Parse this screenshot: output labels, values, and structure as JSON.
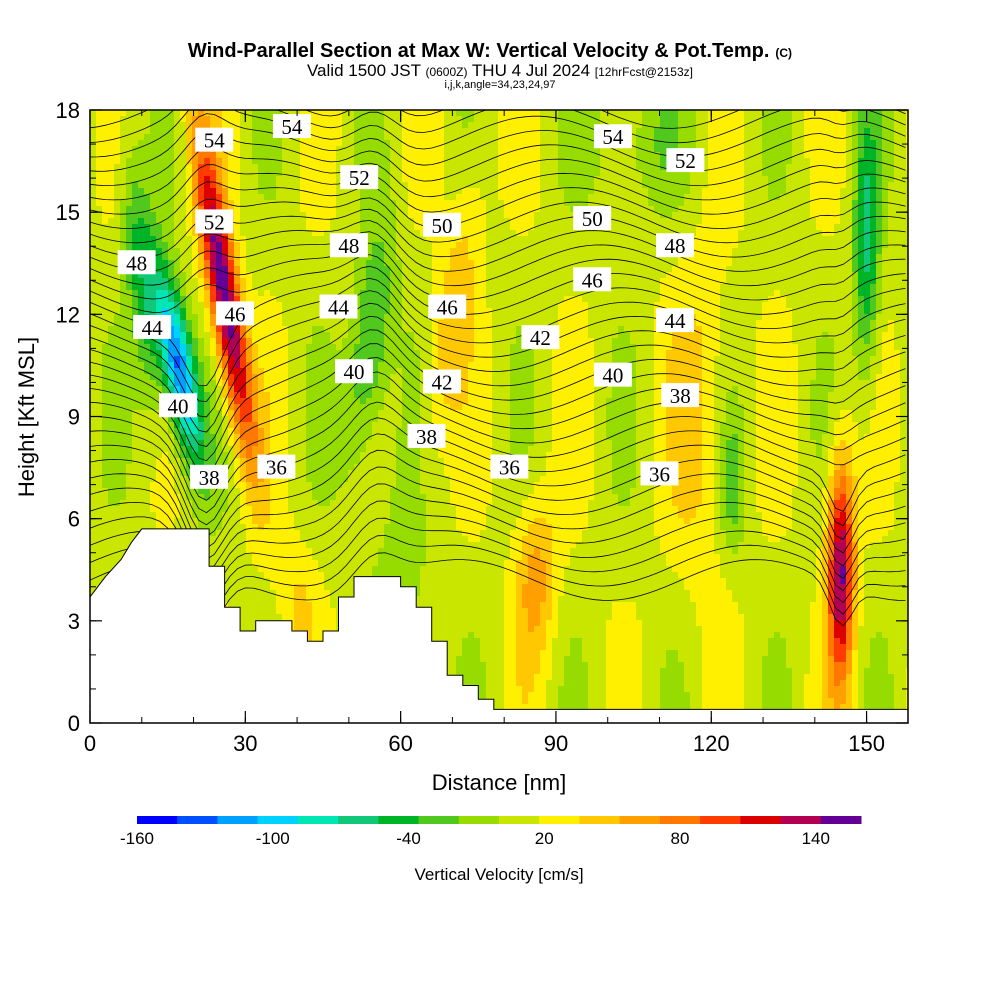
{
  "chart_data": {
    "type": "heatmap",
    "title": "Wind-Parallel Section at Max W: Vertical Velocity & Pot.Temp.",
    "title_mark": "(C)",
    "subtitle_valid": "Valid 1500 JST",
    "subtitle_utc": "(0600Z)",
    "subtitle_date": "THU 4 Jul 2024",
    "subtitle_fcst": "[12hrFcst@2153z]",
    "subtitle_indices": "i,j,k,angle=34,23,24,97",
    "xlabel": "Distance [nm]",
    "ylabel": "Height [Kft MSL]",
    "xlim": [
      0,
      158
    ],
    "ylim": [
      0,
      18
    ],
    "x_ticks": [
      0,
      30,
      60,
      90,
      120,
      150
    ],
    "y_ticks": [
      0,
      3,
      6,
      9,
      12,
      15,
      18
    ],
    "colorbar": {
      "label": "Vertical Velocity [cm/s]",
      "range": [
        -160,
        160
      ],
      "tick_values": [
        -160,
        -100,
        -40,
        20,
        80,
        140
      ],
      "tick_labels": [
        "-160",
        "-100",
        "-40",
        "20",
        "80",
        "140"
      ],
      "colors": [
        "#0000ff",
        "#0050ff",
        "#00a0ff",
        "#00d2ff",
        "#00e6b4",
        "#10c878",
        "#00b428",
        "#50c81e",
        "#96dc00",
        "#c8e600",
        "#fff000",
        "#ffc800",
        "#ffa000",
        "#ff7800",
        "#ff3c00",
        "#dc0000",
        "#b40050",
        "#640096"
      ]
    },
    "series": [
      {
        "name": "Vertical Velocity",
        "units": "cm/s",
        "features": [
          {
            "x": 22,
            "y": 12,
            "w": 140
          },
          {
            "x": 20,
            "y": 10,
            "w": -120
          },
          {
            "x": 52,
            "y": 11,
            "w": -50
          },
          {
            "x": 86,
            "y": 4.5,
            "w": 55
          },
          {
            "x": 145,
            "y": 4.5,
            "w": 120
          },
          {
            "x": 150,
            "y": 14,
            "w": -50
          }
        ]
      },
      {
        "name": "Pot.Temp.",
        "units": "",
        "contour_labels": [
          {
            "text": "54",
            "x": 24,
            "y": 17.1
          },
          {
            "text": "54",
            "x": 39,
            "y": 17.5
          },
          {
            "text": "54",
            "x": 101,
            "y": 17.2
          },
          {
            "text": "52",
            "x": 24,
            "y": 14.7
          },
          {
            "text": "52",
            "x": 52,
            "y": 16.0
          },
          {
            "text": "52",
            "x": 115,
            "y": 16.5
          },
          {
            "text": "50",
            "x": 68,
            "y": 14.6
          },
          {
            "text": "50",
            "x": 97,
            "y": 14.8
          },
          {
            "text": "48",
            "x": 9,
            "y": 13.5
          },
          {
            "text": "48",
            "x": 50,
            "y": 14.0
          },
          {
            "text": "48",
            "x": 113,
            "y": 14.0
          },
          {
            "text": "46",
            "x": 28,
            "y": 12.0
          },
          {
            "text": "46",
            "x": 69,
            "y": 12.2
          },
          {
            "text": "46",
            "x": 97,
            "y": 13.0
          },
          {
            "text": "44",
            "x": 12,
            "y": 11.6
          },
          {
            "text": "44",
            "x": 48,
            "y": 12.2
          },
          {
            "text": "44",
            "x": 113,
            "y": 11.8
          },
          {
            "text": "42",
            "x": 87,
            "y": 11.3
          },
          {
            "text": "42",
            "x": 68,
            "y": 10.0
          },
          {
            "text": "40",
            "x": 17,
            "y": 9.3
          },
          {
            "text": "40",
            "x": 51,
            "y": 10.3
          },
          {
            "text": "40",
            "x": 101,
            "y": 10.2
          },
          {
            "text": "38",
            "x": 23,
            "y": 7.2
          },
          {
            "text": "38",
            "x": 65,
            "y": 8.4
          },
          {
            "text": "38",
            "x": 114,
            "y": 9.6
          },
          {
            "text": "36",
            "x": 36,
            "y": 7.5
          },
          {
            "text": "36",
            "x": 81,
            "y": 7.5
          },
          {
            "text": "36",
            "x": 110,
            "y": 7.3
          }
        ]
      }
    ],
    "terrain_profile": [
      [
        0,
        3.7
      ],
      [
        3,
        4.3
      ],
      [
        6,
        4.8
      ],
      [
        8,
        5.3
      ],
      [
        10,
        5.7
      ],
      [
        23,
        5.7
      ],
      [
        23,
        4.6
      ],
      [
        26,
        4.6
      ],
      [
        26,
        3.4
      ],
      [
        29,
        3.4
      ],
      [
        29,
        2.7
      ],
      [
        32,
        2.7
      ],
      [
        32,
        3.0
      ],
      [
        39,
        3.0
      ],
      [
        39,
        2.7
      ],
      [
        42,
        2.7
      ],
      [
        42,
        2.4
      ],
      [
        45,
        2.4
      ],
      [
        45,
        2.7
      ],
      [
        48,
        2.7
      ],
      [
        48,
        3.7
      ],
      [
        51,
        3.7
      ],
      [
        51,
        4.3
      ],
      [
        60,
        4.3
      ],
      [
        60,
        4.0
      ],
      [
        63,
        4.0
      ],
      [
        63,
        3.4
      ],
      [
        66,
        3.4
      ],
      [
        66,
        2.4
      ],
      [
        69,
        2.4
      ],
      [
        69,
        1.4
      ],
      [
        72,
        1.4
      ],
      [
        72,
        1.1
      ],
      [
        75,
        1.1
      ],
      [
        75,
        0.7
      ],
      [
        78,
        0.7
      ],
      [
        78,
        0.4
      ],
      [
        158,
        0.4
      ]
    ]
  }
}
